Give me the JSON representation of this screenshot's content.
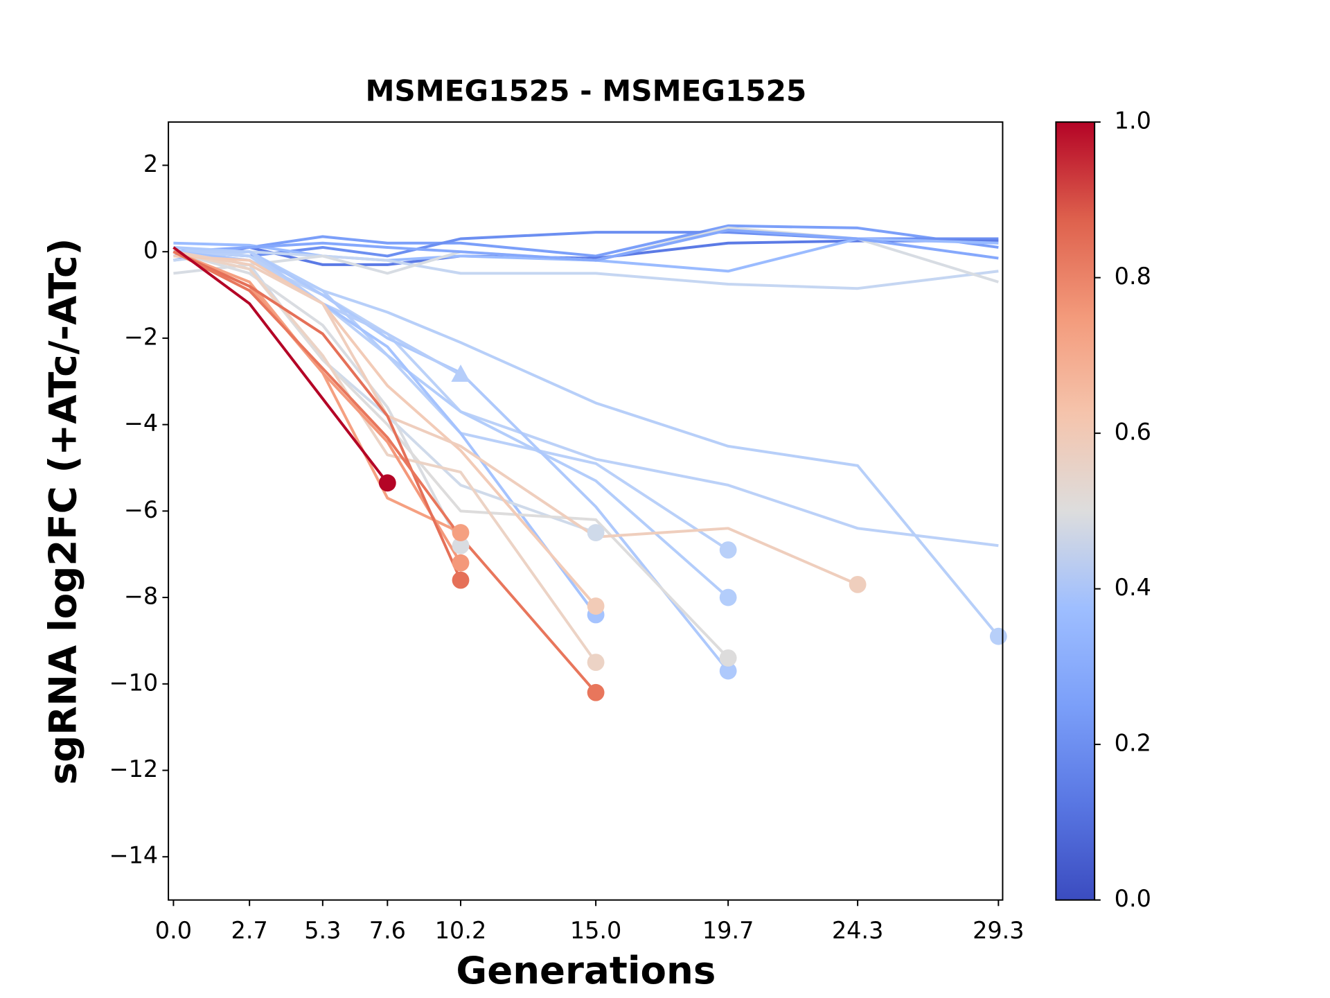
{
  "chart_data": {
    "type": "line",
    "title": "MSMEG1525 - MSMEG1525",
    "xlabel": "Generations",
    "ylabel": "sgRNA log2FC (+ATc/-ATc)",
    "x": [
      0,
      2.7,
      5.3,
      7.6,
      10.2,
      15.0,
      19.7,
      24.3,
      29.3
    ],
    "xlim": [
      -0.18,
      29.45
    ],
    "xticks": [
      {
        "value": 0,
        "label": "0.0"
      },
      2.7,
      5.3,
      7.6,
      10.2,
      {
        "value": 15,
        "label": "15.0"
      },
      19.7,
      24.3,
      29.3
    ],
    "ylim": [
      -15,
      3
    ],
    "yticks": [
      2,
      0,
      {
        "value": -2,
        "label": "−2"
      },
      {
        "value": -4,
        "label": "−4"
      },
      {
        "value": -6,
        "label": "−6"
      },
      {
        "value": -8,
        "label": "−8"
      },
      {
        "value": -10,
        "label": "−10"
      },
      {
        "value": -12,
        "label": "−12"
      },
      {
        "value": -14,
        "label": "−14"
      }
    ],
    "grid": false,
    "colorbar": {
      "lim": [
        0,
        1
      ],
      "ticks": [
        {
          "value": 0,
          "label": "0.0"
        },
        0.2,
        0.4,
        0.6,
        0.8,
        {
          "value": 1,
          "label": "1.0"
        }
      ],
      "colormap": "coolwarm"
    },
    "series": [
      {
        "color": "#7b9ff9",
        "values": [
          -0.1,
          0.1,
          0.35,
          0.2,
          0.2,
          -0.1,
          0.6,
          0.55,
          0.1
        ]
      },
      {
        "color": "#6c8ff1",
        "values": [
          0,
          -0.1,
          0.1,
          -0.1,
          0.3,
          0.45,
          0.45,
          0.3,
          0.3
        ]
      },
      {
        "color": "#5b7ae5",
        "values": [
          -0.2,
          0.1,
          -0.3,
          -0.3,
          -0.1,
          -0.15,
          0.2,
          0.25,
          0.25
        ]
      },
      {
        "color": "#9abbff",
        "values": [
          0.2,
          0.15,
          -0.1,
          -0.2,
          -0.1,
          -0.2,
          -0.45,
          0.3,
          0.2
        ]
      },
      {
        "color": "#c5d6f2",
        "values": [
          -0.2,
          0,
          -0.1,
          -0.2,
          -0.5,
          -0.5,
          -0.75,
          -0.85,
          -0.45
        ]
      },
      {
        "color": "#d7dce3",
        "values": [
          -0.5,
          -0.3,
          -0.1,
          -0.5,
          0,
          -0.2,
          0.55,
          0.3,
          -0.7
        ]
      },
      {
        "color": "#85a8fc",
        "values": [
          0,
          0.1,
          0.2,
          0.1,
          0,
          -0.2,
          0.5,
          0.3,
          -0.15
        ]
      },
      {
        "color": "#bbd1f8",
        "values": [
          0,
          -0.2,
          -1.0,
          -1.9,
          -3.7,
          -4.8,
          -5.4,
          -6.4,
          -6.8
        ]
      },
      {
        "color": "#b7cff9",
        "marker": "o",
        "values": [
          0.1,
          -0.1,
          -0.9,
          -1.4,
          -2.1,
          -3.5,
          -4.5,
          -4.95,
          -8.9
        ]
      },
      {
        "color": "#b9d0f9",
        "marker": "o",
        "values": [
          0,
          -0.1,
          -1.2,
          -2.4,
          -4.2,
          -4.9,
          -6.9,
          null,
          null
        ]
      },
      {
        "color": "#b3cdfb",
        "marker": "o",
        "values": [
          0,
          0,
          -0.9,
          -2.4,
          -3.7,
          -5.3,
          -8.0,
          null,
          null
        ]
      },
      {
        "color": "#aec9fc",
        "marker": "o",
        "values": [
          0.1,
          0,
          -1.0,
          -2.0,
          -2.8,
          -5.9,
          -9.7,
          null,
          null
        ]
      },
      {
        "color": "#b5cdfa",
        "marker": "^",
        "values": [
          0,
          0,
          -1.2,
          -1.9,
          -2.85,
          null,
          null,
          null,
          null
        ]
      },
      {
        "color": "#a5c3fe",
        "marker": "o",
        "values": [
          0,
          -0.2,
          -1.2,
          -2.2,
          -4.2,
          -8.4,
          null,
          null,
          null
        ]
      },
      {
        "color": "#cfdaea",
        "marker": "o",
        "values": [
          0,
          -0.3,
          -2.5,
          -3.8,
          -5.4,
          -6.5,
          null,
          null,
          null
        ]
      },
      {
        "color": "#d9dce1",
        "marker": "o",
        "values": [
          0,
          -0.5,
          -1.7,
          -3.6,
          -6.8,
          null,
          null,
          null,
          null
        ]
      },
      {
        "color": "#dddcdc",
        "marker": "o",
        "values": [
          0,
          -0.4,
          -2.5,
          -4.0,
          -6.0,
          -6.2,
          -9.4,
          null,
          null
        ]
      },
      {
        "color": "#ecd3c5",
        "marker": "o",
        "values": [
          0,
          -0.4,
          -2.4,
          -4.7,
          -5.1,
          -9.5,
          null,
          null,
          null
        ]
      },
      {
        "color": "#f2cbb7",
        "marker": "o",
        "values": [
          -0.1,
          -0.2,
          -1.2,
          -3.1,
          -4.6,
          -8.2,
          null,
          null,
          null
        ]
      },
      {
        "color": "#efcebd",
        "marker": "o",
        "values": [
          0,
          -0.3,
          -1.2,
          -3.8,
          -4.5,
          -6.6,
          -6.4,
          -7.7,
          null
        ]
      },
      {
        "color": "#f5a081",
        "marker": "o",
        "values": [
          0,
          -0.7,
          -2.8,
          -5.7,
          -6.5,
          null,
          null,
          null,
          null
        ]
      },
      {
        "color": "#f4987a",
        "marker": "o",
        "values": [
          0,
          -0.8,
          -2.8,
          -4.4,
          -7.2,
          null,
          null,
          null,
          null
        ]
      },
      {
        "color": "#e57058",
        "marker": "o",
        "values": [
          0,
          -0.8,
          -1.9,
          -3.8,
          -7.6,
          null,
          null,
          null,
          null
        ]
      },
      {
        "color": "#e8765c",
        "marker": "o",
        "values": [
          0,
          -0.9,
          -2.7,
          -4.3,
          -6.6,
          -10.2,
          null,
          null,
          null
        ]
      },
      {
        "color": "#b40426",
        "marker": "o",
        "values": [
          0.1,
          -1.2,
          -3.4,
          -5.35,
          null,
          null,
          null,
          null,
          null
        ]
      }
    ]
  }
}
